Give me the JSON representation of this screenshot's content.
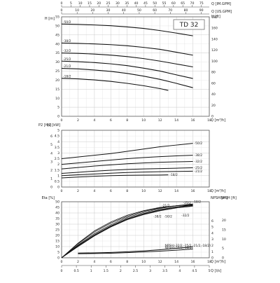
{
  "chart_data": [
    {
      "type": "line",
      "title": "TD 32",
      "top_axes": [
        {
          "label": "Q [IM.GPM]",
          "ticks": [
            "0",
            "5",
            "10",
            "15",
            "20",
            "25",
            "30",
            "35",
            "40",
            "45",
            "50",
            "55",
            "60",
            "65",
            "70",
            "75"
          ]
        },
        {
          "label": "Q [US.GPM]",
          "ticks": [
            "0",
            "10",
            "20",
            "30",
            "40",
            "50",
            "60",
            "70",
            "80",
            "90"
          ]
        }
      ],
      "x_axis": {
        "label": "Q [m³/h]",
        "ticks": [
          "0",
          "2",
          "4",
          "6",
          "8",
          "10",
          "12",
          "14",
          "16",
          "18"
        ],
        "xlim": [
          0,
          18
        ]
      },
      "y_left": {
        "label": "H [m]",
        "ticks": [
          "0",
          "5",
          "10",
          "15",
          "20",
          "25",
          "30",
          "35",
          "40",
          "45",
          "50",
          "55"
        ],
        "ylim": [
          0,
          55
        ]
      },
      "y_right": {
        "label": "H [ft]",
        "ticks": [
          "0",
          "20",
          "40",
          "60",
          "80",
          "100",
          "120",
          "140",
          "160",
          "180"
        ]
      },
      "series": [
        {
          "name": "-50/2",
          "x": [
            0,
            2,
            4,
            6,
            8,
            10,
            12,
            14,
            16
          ],
          "y": [
            51,
            50.8,
            50.5,
            50.1,
            49.4,
            48.6,
            47.4,
            46.0,
            44.5
          ]
        },
        {
          "name": "-38/2",
          "x": [
            0,
            2,
            4,
            6,
            8,
            10,
            12,
            14,
            16
          ],
          "y": [
            40.5,
            40.3,
            40.0,
            39.6,
            39.0,
            38.1,
            37.0,
            35.4,
            33.8
          ]
        },
        {
          "name": "-32/2",
          "x": [
            0,
            2,
            4,
            6,
            8,
            10,
            12,
            14,
            16
          ],
          "y": [
            35,
            34.8,
            34.4,
            33.8,
            33.0,
            31.9,
            30.5,
            28.9,
            27.3
          ]
        },
        {
          "name": "-25/2",
          "x": [
            0,
            2,
            4,
            6,
            8,
            10,
            12,
            14,
            16
          ],
          "y": [
            30.5,
            30.2,
            29.7,
            29.0,
            28.0,
            26.6,
            25.0,
            22.9,
            20.9
          ]
        },
        {
          "name": "-21/2",
          "x": [
            0,
            2,
            4,
            6,
            8,
            10,
            12,
            14,
            16
          ],
          "y": [
            26.5,
            26.2,
            25.6,
            24.8,
            23.7,
            22.2,
            20.4,
            18.2,
            15.8
          ]
        },
        {
          "name": "-18/2",
          "x": [
            0,
            2,
            4,
            6,
            8,
            10,
            12,
            13
          ],
          "y": [
            21,
            20.7,
            20.1,
            19.3,
            18.2,
            16.9,
            15.3,
            14.3
          ]
        }
      ]
    },
    {
      "type": "line",
      "x_axis": {
        "label": "Q [m³/h]",
        "ticks": [
          "0",
          "2",
          "4",
          "6",
          "8",
          "10",
          "12",
          "14",
          "16",
          "18"
        ],
        "xlim": [
          0,
          18
        ]
      },
      "y_left": {
        "label": "P2 [hp]",
        "ticks": [
          "0",
          "1",
          "2",
          "3",
          "4",
          "5",
          "6",
          "7"
        ]
      },
      "y_right": {
        "label": "P2 [kW]",
        "ticks": [
          "0",
          "0.5",
          "1",
          "1.5",
          "2",
          "2.5",
          "3",
          "3.5",
          "4",
          "4.5",
          "5"
        ],
        "ylim": [
          0,
          5
        ]
      },
      "series": [
        {
          "name": "-50/2",
          "x": [
            0,
            2,
            4,
            6,
            8,
            10,
            12,
            14,
            16
          ],
          "y": [
            2.5,
            2.65,
            2.8,
            2.95,
            3.15,
            3.35,
            3.55,
            3.7,
            3.85
          ]
        },
        {
          "name": "-38/2",
          "x": [
            0,
            2,
            4,
            6,
            8,
            10,
            12,
            14,
            16
          ],
          "y": [
            2.0,
            2.12,
            2.25,
            2.38,
            2.5,
            2.6,
            2.68,
            2.75,
            2.8
          ]
        },
        {
          "name": "-32/2",
          "x": [
            0,
            2,
            4,
            6,
            8,
            10,
            12,
            14,
            16
          ],
          "y": [
            1.6,
            1.72,
            1.85,
            1.95,
            2.05,
            2.12,
            2.18,
            2.22,
            2.25
          ]
        },
        {
          "name": "-25/2",
          "x": [
            0,
            2,
            4,
            6,
            8,
            10,
            12,
            14,
            16
          ],
          "y": [
            1.2,
            1.3,
            1.4,
            1.48,
            1.55,
            1.6,
            1.63,
            1.66,
            1.7
          ]
        },
        {
          "name": "-21/2",
          "x": [
            0,
            2,
            4,
            6,
            8,
            10,
            12,
            14,
            16
          ],
          "y": [
            1.0,
            1.08,
            1.15,
            1.22,
            1.28,
            1.32,
            1.35,
            1.37,
            1.4
          ]
        },
        {
          "name": "-18/2",
          "x": [
            0,
            2,
            4,
            6,
            8,
            10,
            12,
            13
          ],
          "y": [
            0.8,
            0.88,
            0.95,
            1.0,
            1.03,
            1.05,
            1.06,
            1.07
          ]
        }
      ]
    },
    {
      "type": "line",
      "x_axis": {
        "label": "Q [m³/h]",
        "ticks": [
          "0",
          "2",
          "4",
          "6",
          "8",
          "10",
          "12",
          "14",
          "16",
          "18"
        ],
        "xlim": [
          0,
          18
        ]
      },
      "x_axis_2": {
        "label": "Q [l/s]",
        "ticks": [
          "0",
          "0.5",
          "1",
          "1.5",
          "2",
          "2.5",
          "3",
          "3.5",
          "4",
          "4.5",
          "5"
        ]
      },
      "y_left": {
        "label": "Eta [%]",
        "ticks": [
          "0",
          "5",
          "10",
          "15",
          "20",
          "25",
          "30",
          "35",
          "40",
          "45",
          "50"
        ],
        "ylim": [
          0,
          50
        ]
      },
      "y_right_1": {
        "label": "NPSH [m]",
        "ticks": [
          "0",
          "1",
          "2",
          "3",
          "4",
          "5",
          "6"
        ]
      },
      "y_right_2": {
        "label": "NPSH [ft]",
        "ticks": [
          "0",
          "5",
          "10",
          "15",
          "20"
        ]
      },
      "series": [
        {
          "name": "-21/2",
          "x": [
            0,
            2,
            4,
            6,
            8,
            10,
            12,
            14,
            16
          ],
          "y": [
            0,
            13,
            24,
            32,
            38,
            42,
            45,
            46.5,
            47
          ]
        },
        {
          "name": "-25/2",
          "x": [
            0,
            2,
            4,
            6,
            8,
            10,
            12,
            14,
            16
          ],
          "y": [
            0,
            12.5,
            23,
            31,
            37,
            41.5,
            44.5,
            46.5,
            47.5
          ]
        },
        {
          "name": "-18/2",
          "x": [
            0,
            2,
            4,
            6,
            8,
            10,
            12,
            14,
            16
          ],
          "y": [
            0,
            11.5,
            21.5,
            29.5,
            36,
            40.5,
            44,
            46.5,
            48
          ]
        },
        {
          "name": "-32/2",
          "x": [
            0,
            2,
            4,
            6,
            8,
            10,
            12,
            14,
            16
          ],
          "y": [
            0,
            11,
            20.5,
            28.5,
            35,
            39.5,
            43,
            45.5,
            47
          ]
        },
        {
          "name": "-38/2",
          "x": [
            0,
            2,
            4,
            6,
            8,
            10,
            12,
            14,
            16
          ],
          "y": [
            0,
            10.5,
            20,
            28,
            34.5,
            39,
            42.5,
            45,
            46.5
          ]
        },
        {
          "name": "-50/2",
          "x": [
            0,
            2,
            4,
            6,
            8,
            10,
            12,
            14,
            16
          ],
          "y": [
            0,
            10,
            19.5,
            27.5,
            34,
            38.5,
            42,
            44.5,
            46
          ]
        },
        {
          "name": "NPSH(-32/2,-25/2,-21/2,-18/2)",
          "x": [
            2,
            4,
            6,
            8,
            10,
            12,
            14,
            16
          ],
          "y": [
            4.2,
            4.4,
            4.8,
            5.4,
            6.2,
            7.2,
            8.4,
            9.8
          ]
        },
        {
          "name": "NPSH(-50/2,-38/2)",
          "x": [
            2,
            4,
            6,
            8,
            10,
            12,
            14,
            16
          ],
          "y": [
            3.6,
            3.8,
            4.1,
            4.6,
            5.2,
            5.9,
            6.8,
            7.8
          ]
        }
      ]
    }
  ]
}
